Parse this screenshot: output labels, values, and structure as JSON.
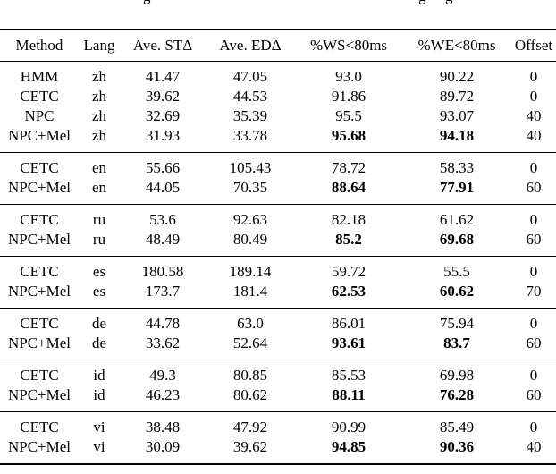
{
  "page": {
    "background": "#ffffff",
    "text_color": "#000000",
    "rule_color": "#000000"
  },
  "caption_fragment": {
    "note": "only bottom descenders of three letters visible at top edge",
    "glyphs": [
      "g",
      "g",
      "g"
    ]
  },
  "table": {
    "headers": [
      "Method",
      "Lang",
      "Ave. STΔ",
      "Ave. EDΔ",
      "%WS<80ms",
      "%WE<80ms",
      "Offset"
    ],
    "column_keys": [
      "method",
      "lang",
      "ave-st-delta",
      "ave-ed-delta",
      "ws-under-80ms",
      "we-under-80ms",
      "offset"
    ],
    "groups": [
      {
        "lang": "zh",
        "rows": [
          {
            "cells": [
              "HMM",
              "zh",
              "41.47",
              "47.05",
              "93.0",
              "90.22",
              "0"
            ],
            "bold": []
          },
          {
            "cells": [
              "CETC",
              "zh",
              "39.62",
              "44.53",
              "91.86",
              "89.72",
              "0"
            ],
            "bold": []
          },
          {
            "cells": [
              "NPC",
              "zh",
              "32.69",
              "35.39",
              "95.5",
              "93.07",
              "40"
            ],
            "bold": []
          },
          {
            "cells": [
              "NPC+Mel",
              "zh",
              "31.93",
              "33.78",
              "95.68",
              "94.18",
              "40"
            ],
            "bold": [
              4,
              5
            ]
          }
        ]
      },
      {
        "lang": "en",
        "rows": [
          {
            "cells": [
              "CETC",
              "en",
              "55.66",
              "105.43",
              "78.72",
              "58.33",
              "0"
            ],
            "bold": []
          },
          {
            "cells": [
              "NPC+Mel",
              "en",
              "44.05",
              "70.35",
              "88.64",
              "77.91",
              "60"
            ],
            "bold": [
              4,
              5
            ]
          }
        ]
      },
      {
        "lang": "ru",
        "rows": [
          {
            "cells": [
              "CETC",
              "ru",
              "53.6",
              "92.63",
              "82.18",
              "61.62",
              "0"
            ],
            "bold": []
          },
          {
            "cells": [
              "NPC+Mel",
              "ru",
              "48.49",
              "80.49",
              "85.2",
              "69.68",
              "60"
            ],
            "bold": [
              4,
              5
            ]
          }
        ]
      },
      {
        "lang": "es",
        "rows": [
          {
            "cells": [
              "CETC",
              "es",
              "180.58",
              "189.14",
              "59.72",
              "55.5",
              "0"
            ],
            "bold": []
          },
          {
            "cells": [
              "NPC+Mel",
              "es",
              "173.7",
              "181.4",
              "62.53",
              "60.62",
              "70"
            ],
            "bold": [
              4,
              5
            ]
          }
        ]
      },
      {
        "lang": "de",
        "rows": [
          {
            "cells": [
              "CETC",
              "de",
              "44.78",
              "63.0",
              "86.01",
              "75.94",
              "0"
            ],
            "bold": []
          },
          {
            "cells": [
              "NPC+Mel",
              "de",
              "33.62",
              "52.64",
              "93.61",
              "83.7",
              "60"
            ],
            "bold": [
              4,
              5
            ]
          }
        ]
      },
      {
        "lang": "id",
        "rows": [
          {
            "cells": [
              "CETC",
              "id",
              "49.3",
              "80.85",
              "85.53",
              "69.98",
              "0"
            ],
            "bold": []
          },
          {
            "cells": [
              "NPC+Mel",
              "id",
              "46.23",
              "80.62",
              "88.11",
              "76.28",
              "60"
            ],
            "bold": [
              4,
              5
            ]
          }
        ]
      },
      {
        "lang": "vi",
        "rows": [
          {
            "cells": [
              "CETC",
              "vi",
              "38.48",
              "47.92",
              "90.99",
              "85.49",
              "0"
            ],
            "bold": []
          },
          {
            "cells": [
              "NPC+Mel",
              "vi",
              "30.09",
              "39.62",
              "94.85",
              "90.36",
              "40"
            ],
            "bold": [
              4,
              5
            ]
          }
        ]
      }
    ]
  }
}
